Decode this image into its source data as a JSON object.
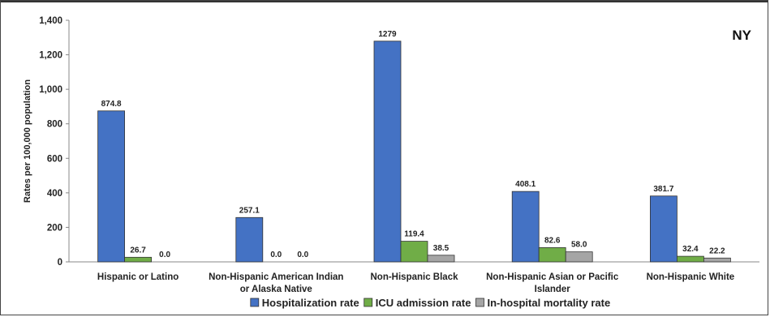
{
  "chart_data": {
    "type": "bar",
    "annotation": "NY",
    "ylabel": "Rates per 100,000 population",
    "xlabel": "",
    "ylim": [
      0,
      1400
    ],
    "yticks": [
      {
        "value": 0,
        "label": "0"
      },
      {
        "value": 200,
        "label": "200"
      },
      {
        "value": 400,
        "label": "400"
      },
      {
        "value": 600,
        "label": "600"
      },
      {
        "value": 800,
        "label": "800"
      },
      {
        "value": 1000,
        "label": "1,000"
      },
      {
        "value": 1200,
        "label": "1,200"
      },
      {
        "value": 1400,
        "label": "1,400"
      }
    ],
    "categories": [
      [
        "Hispanic or Latino"
      ],
      [
        "Non-Hispanic American Indian",
        "or Alaska Native"
      ],
      [
        "Non-Hispanic Black"
      ],
      [
        "Non-Hispanic Asian or Pacific",
        "Islander"
      ],
      [
        "Non-Hispanic White"
      ]
    ],
    "legend_position": "bottom",
    "series": [
      {
        "name": "Hospitalization rate",
        "color": "#4472C4",
        "values": [
          874.8,
          257.1,
          1279,
          408.1,
          381.7
        ],
        "labels": [
          "874.8",
          "257.1",
          "1279",
          "408.1",
          "381.7"
        ]
      },
      {
        "name": "ICU admission rate",
        "color": "#70AD47",
        "values": [
          26.7,
          0.0,
          119.4,
          82.6,
          32.4
        ],
        "labels": [
          "26.7",
          "0.0",
          "119.4",
          "82.6",
          "32.4"
        ]
      },
      {
        "name": "In-hospital mortality rate",
        "color": "#A5A5A5",
        "values": [
          0.0,
          0.0,
          38.5,
          58.0,
          22.2
        ],
        "labels": [
          "0.0",
          "0.0",
          "38.5",
          "58.0",
          "22.2"
        ]
      }
    ]
  }
}
